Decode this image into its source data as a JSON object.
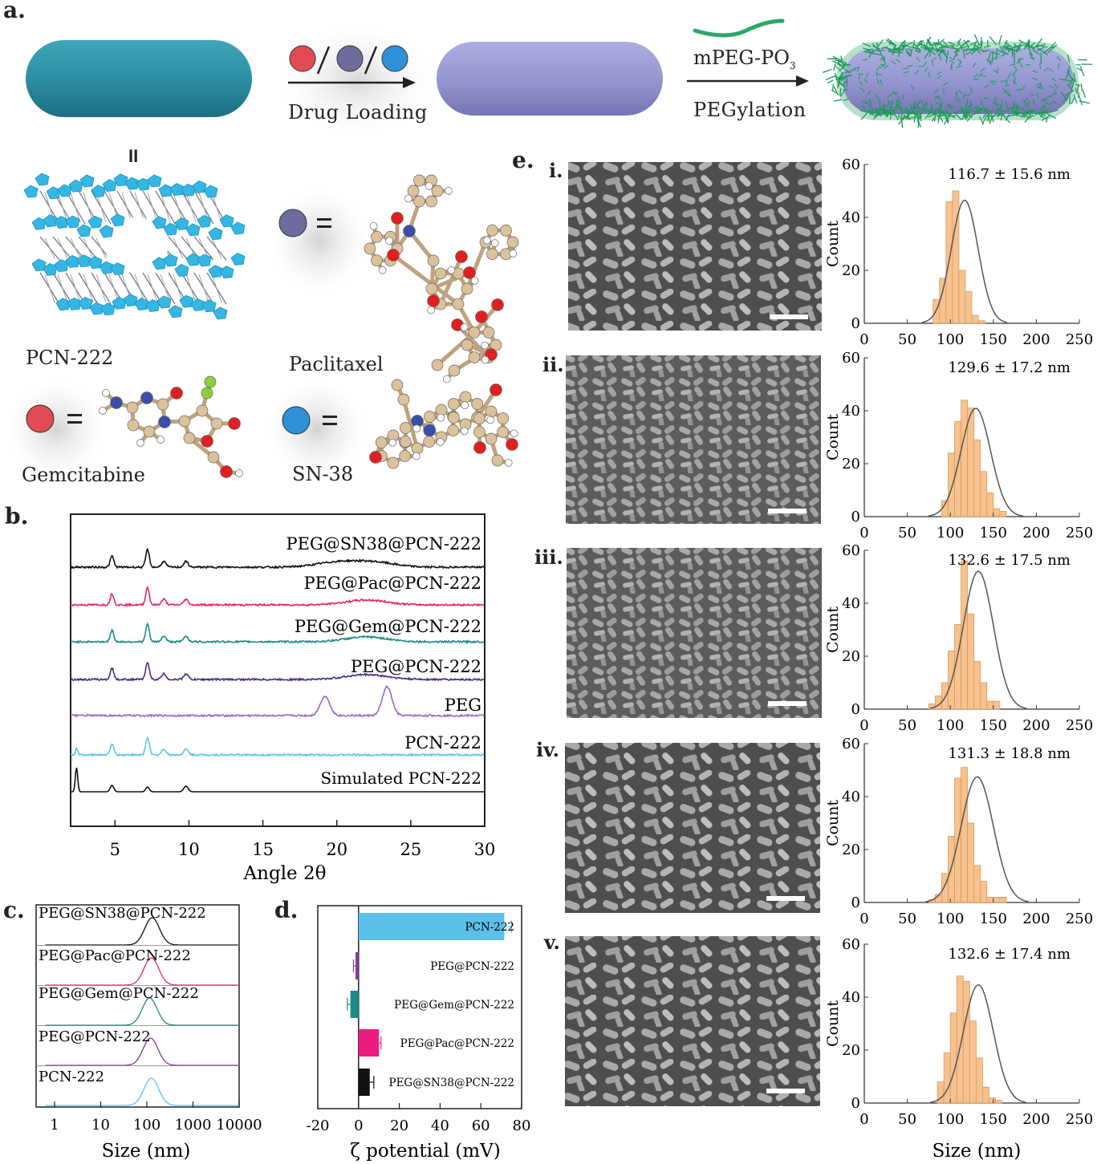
{
  "panel_labels": {
    "a": "a.",
    "b": "b.",
    "c": "c.",
    "d": "d.",
    "e": "e."
  },
  "panel_a": {
    "drug_loading": "Drug Loading",
    "reagent": "mPEG-PO",
    "reagent_sub": "3",
    "pegylation": "PEGylation",
    "equals": "II",
    "mof_name": "PCN-222",
    "drugs": [
      {
        "name": "Paclitaxel",
        "color": "#6b6a9a"
      },
      {
        "name": "Gemcitabine",
        "color": "#e04a55"
      },
      {
        "name": "SN-38",
        "color": "#2f8fd6"
      }
    ],
    "eq": "="
  },
  "panel_e_roman": [
    "i.",
    "ii.",
    "iii.",
    "iv.",
    "v."
  ],
  "chart_data": [
    {
      "type": "line",
      "panel": "b",
      "xlabel": "Angle 2θ",
      "xlim": [
        2,
        30
      ],
      "xticks": [
        5,
        10,
        15,
        20,
        25,
        30
      ],
      "series": [
        {
          "name": "PEG@SN38@PCN-222",
          "color": "#111111",
          "peaks": [
            4.8,
            7.2,
            8.3,
            9.8,
            20.0,
            22.5
          ]
        },
        {
          "name": "PEG@Pac@PCN-222",
          "color": "#e8266e",
          "peaks": [
            4.8,
            7.2,
            8.3,
            9.8,
            22.0
          ]
        },
        {
          "name": "PEG@Gem@PCN-222",
          "color": "#1e8a85",
          "peaks": [
            4.8,
            7.2,
            8.3,
            9.8,
            22.0
          ]
        },
        {
          "name": "PEG@PCN-222",
          "color": "#4b2a8a",
          "peaks": [
            4.8,
            7.2,
            8.3,
            9.8,
            22.0
          ]
        },
        {
          "name": "PEG",
          "color": "#9b6bc4",
          "peaks": [
            19.2,
            23.4
          ]
        },
        {
          "name": "PCN-222",
          "color": "#5ec4ea",
          "peaks": [
            2.4,
            4.8,
            7.2,
            8.3,
            9.8
          ]
        },
        {
          "name": "Simulated PCN-222",
          "color": "#111111",
          "peaks": [
            2.4,
            4.8,
            7.2,
            9.8
          ]
        }
      ]
    },
    {
      "type": "line",
      "panel": "c",
      "xlabel": "Size (nm)",
      "xscale": "log",
      "xticks": [
        "1",
        "10",
        "100",
        "1000",
        "10000"
      ],
      "series": [
        {
          "name": "PEG@SN38@PCN-222",
          "color": "#111111",
          "peak_nm": 130
        },
        {
          "name": "PEG@Pac@PCN-222",
          "color": "#e8266e",
          "peak_nm": 125
        },
        {
          "name": "PEG@Gem@PCN-222",
          "color": "#1e8a85",
          "peak_nm": 115
        },
        {
          "name": "PEG@PCN-222",
          "color": "#8b3a9e",
          "peak_nm": 120
        },
        {
          "name": "PCN-222",
          "color": "#5ec4ea",
          "peak_nm": 125
        }
      ]
    },
    {
      "type": "bar",
      "panel": "d",
      "orientation": "horizontal",
      "xlabel": "ζ potential (mV)",
      "xlim": [
        -20,
        80
      ],
      "xticks": [
        "-20",
        "0",
        "20",
        "40",
        "60",
        "80"
      ],
      "categories": [
        "PCN-222",
        "PEG@PCN-222",
        "PEG@Gem@PCN-222",
        "PEG@Pac@PCN-222",
        "PEG@SN38@PCN-222"
      ],
      "values": [
        71.5,
        -1.5,
        -4.0,
        10.0,
        5.5
      ],
      "errors": [
        3.5,
        1.0,
        1.5,
        1.0,
        2.0
      ],
      "colors": [
        "#5bc1e8",
        "#8b3a9e",
        "#1e8a85",
        "#ec1c7e",
        "#111111"
      ]
    },
    {
      "type": "bar",
      "panel": "e",
      "xlabel": "Size (nm)",
      "ylabel": "Count",
      "xlim": [
        0,
        250
      ],
      "ylim": [
        0,
        60
      ],
      "xticks": [
        "0",
        "50",
        "100",
        "150",
        "200",
        "250"
      ],
      "yticks": [
        "0",
        "20",
        "40",
        "60"
      ],
      "histograms": [
        {
          "label": "116.7 ± 15.6 nm",
          "mean": 116.7,
          "sd": 15.6,
          "bin_start": 80,
          "bin_width": 7.5,
          "counts": [
            9,
            17,
            46,
            50,
            20,
            12,
            3,
            1
          ]
        },
        {
          "label": "129.6 ± 17.2 nm",
          "mean": 129.6,
          "sd": 17.2,
          "bin_start": 90,
          "bin_width": 7.5,
          "counts": [
            6,
            24,
            36,
            44,
            41,
            29,
            17,
            9,
            3,
            2
          ]
        },
        {
          "label": "132.6 ± 17.5 nm",
          "mean": 132.6,
          "sd": 17.5,
          "bin_start": 75,
          "bin_width": 7.5,
          "counts": [
            2,
            5,
            10,
            22,
            32,
            56,
            36,
            18,
            10,
            3,
            3
          ]
        },
        {
          "label": "131.3 ± 18.8 nm",
          "mean": 131.3,
          "sd": 18.8,
          "bin_start": 75,
          "bin_width": 7.5,
          "counts": [
            1,
            3,
            11,
            25,
            47,
            51,
            30,
            14,
            8,
            2,
            2,
            2
          ]
        },
        {
          "label": "132.6 ± 17.4 nm",
          "mean": 132.6,
          "sd": 17.4,
          "bin_start": 85,
          "bin_width": 7.5,
          "counts": [
            8,
            19,
            34,
            48,
            46,
            31,
            17,
            6,
            2,
            1
          ]
        }
      ]
    }
  ],
  "colors": {
    "teal_rod": "#2e8fa3",
    "lavender_rod": "#9c9cd6",
    "peg_green": "#2aa86a",
    "histogram_fill": "#f6c28f",
    "histogram_edge": "#d99a5c"
  }
}
